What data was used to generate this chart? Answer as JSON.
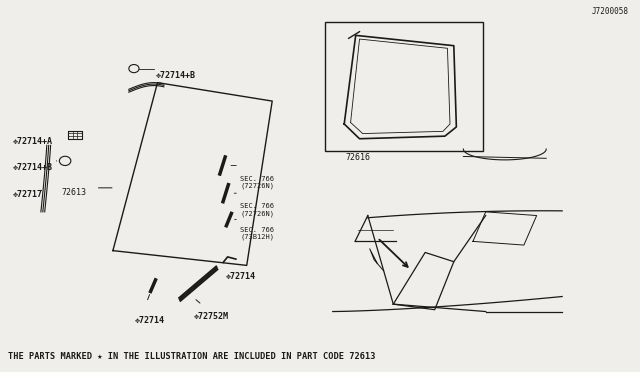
{
  "bg_color": "#f0eeea",
  "line_color": "#1a1a1a",
  "text_color": "#1a1a1a",
  "title_text": "THE PARTS MARKED ★ IN THE ILLUSTRATION ARE INCLUDED IN PART CODE 72613",
  "title_fontsize": 6.5,
  "footer_code": "J7200058",
  "sec_labels": [
    "SEC. 766\n(73B12H)",
    "SEC. 766\n(72726N)",
    "SEC. 766\n(72726N)"
  ]
}
